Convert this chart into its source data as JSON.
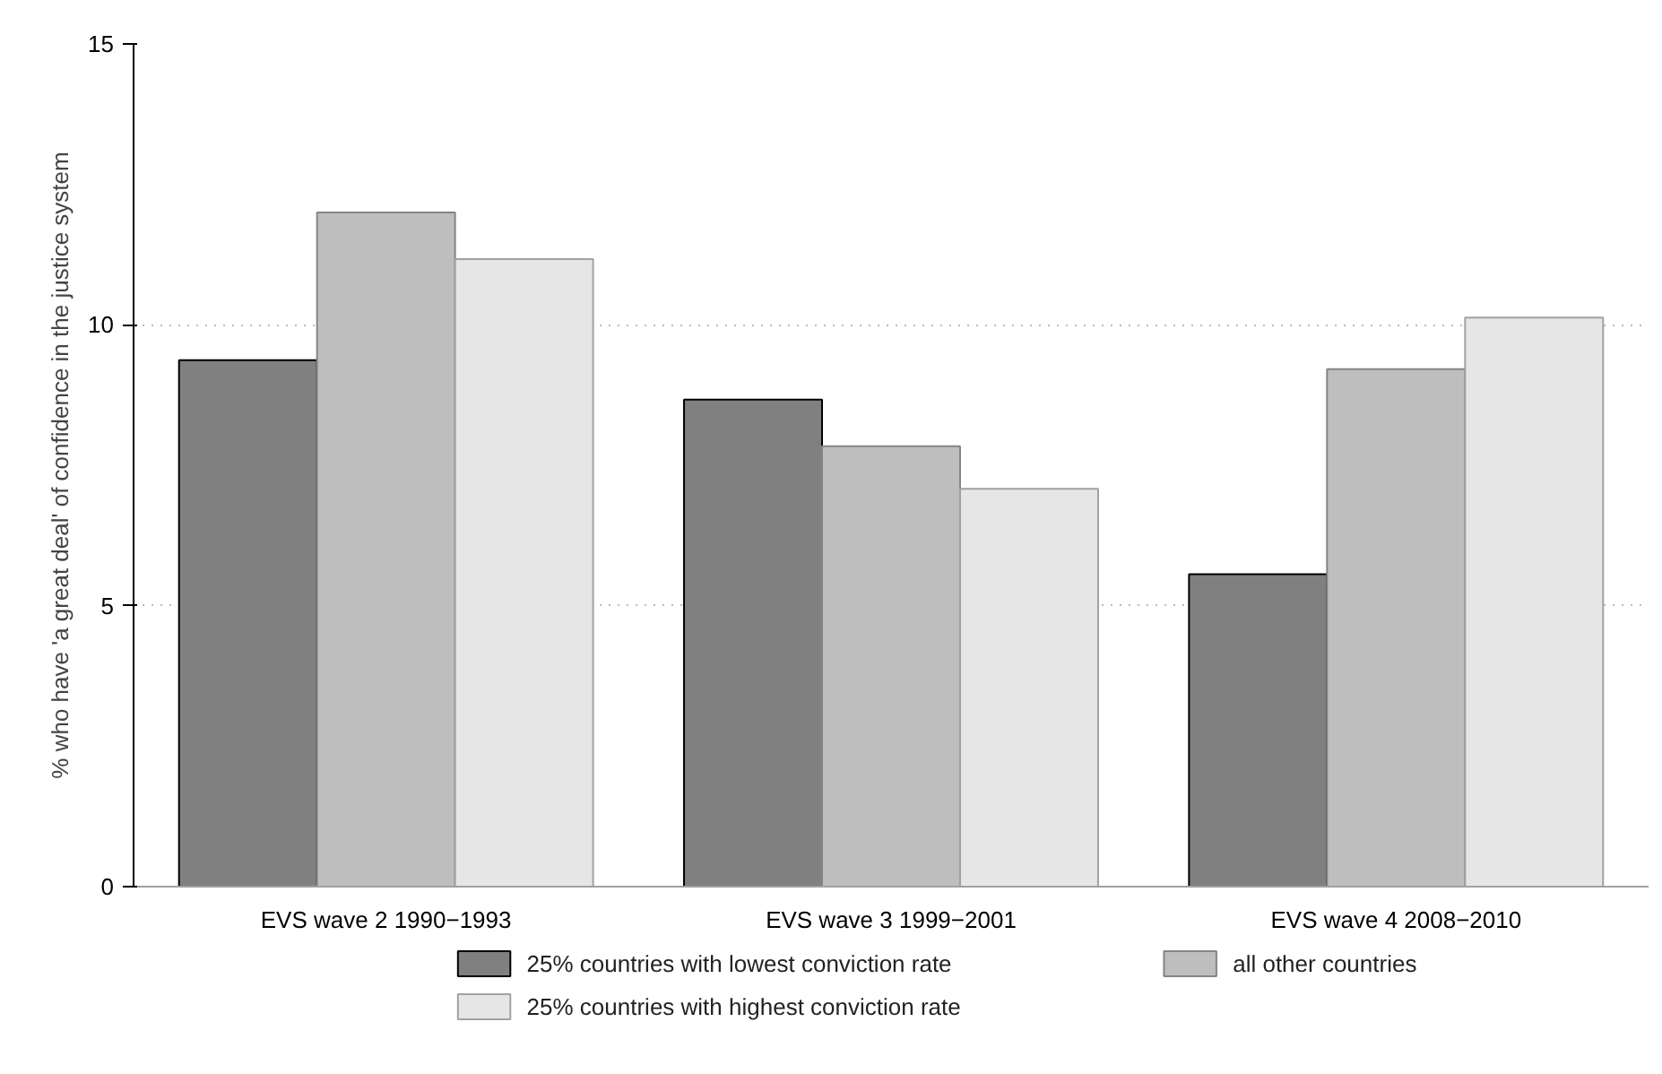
{
  "chart_data": {
    "type": "bar",
    "ylabel": "% who have 'a great deal' of confidence in the justice system",
    "categories": [
      "EVS wave 2 1990−1993",
      "EVS wave 3 1999−2001",
      "EVS wave 4 2008−2010"
    ],
    "series": [
      {
        "name": "25% countries with lowest conviction rate",
        "color": "#808080",
        "values": [
          9.37,
          8.67,
          5.56
        ]
      },
      {
        "name": "all other countries",
        "color": "#bebebe",
        "values": [
          12.0,
          7.84,
          9.21
        ]
      },
      {
        "name": "25% countries with highest conviction rate",
        "color": "#e6e6e6",
        "values": [
          11.17,
          7.08,
          10.13
        ]
      }
    ],
    "ylim": [
      0,
      15
    ],
    "yticks": [
      0,
      5,
      10,
      15
    ],
    "grid": "y",
    "legend": "bottom"
  }
}
